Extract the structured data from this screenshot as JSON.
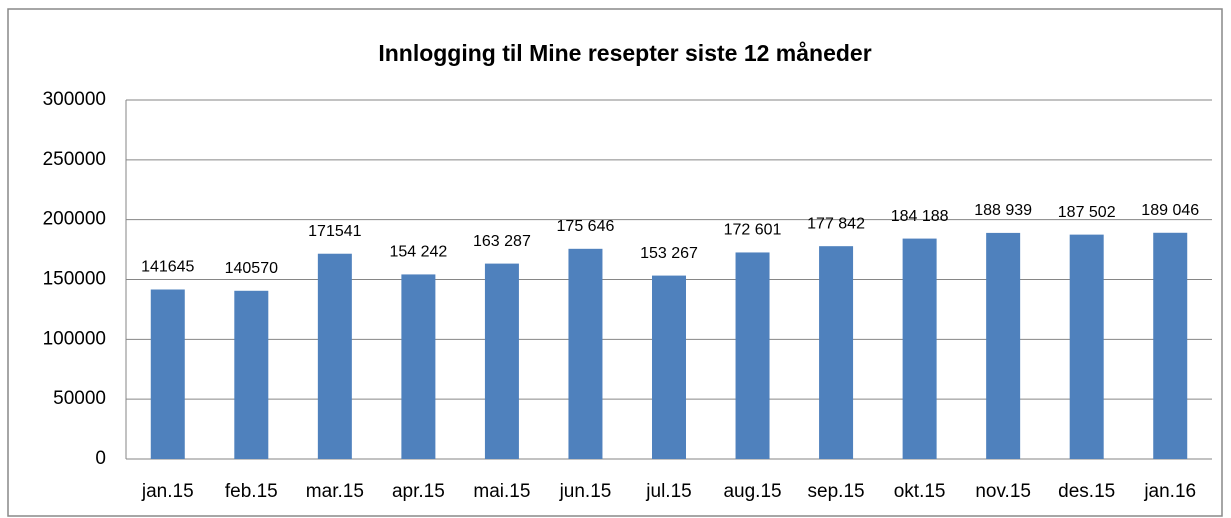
{
  "chart_data": {
    "type": "bar",
    "title": "Innlogging til Mine resepter siste 12 måneder",
    "categories": [
      "jan.15",
      "feb.15",
      "mar.15",
      "apr.15",
      "mai.15",
      "jun.15",
      "jul.15",
      "aug.15",
      "sep.15",
      "okt.15",
      "nov.15",
      "des.15",
      "jan.16"
    ],
    "values": [
      141645,
      140570,
      171541,
      154242,
      163287,
      175646,
      153267,
      172601,
      177842,
      184188,
      188939,
      187502,
      189046
    ],
    "value_labels": [
      "141645",
      "140570",
      "171541",
      "154 242",
      "163 287",
      "175 646",
      "153 267",
      "172 601",
      "177 842",
      "184 188",
      "188 939",
      "187 502",
      "189 046"
    ],
    "color": "#4f81bd",
    "ylim": [
      0,
      300000
    ],
    "yticks": [
      0,
      50000,
      100000,
      150000,
      200000,
      250000,
      300000
    ],
    "grid": true
  }
}
